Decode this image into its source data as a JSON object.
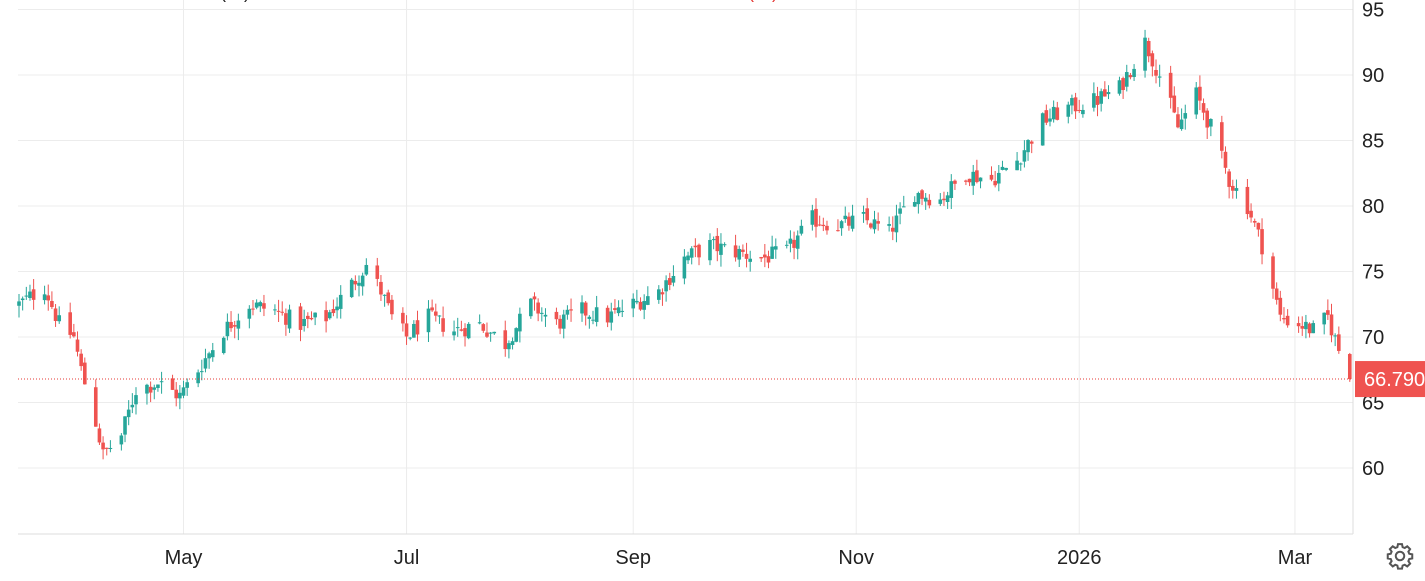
{
  "chart_data": {
    "type": "candlestick",
    "title": "",
    "y_axis": {
      "ticks": [
        "60",
        "65",
        "70",
        "75",
        "80",
        "85",
        "90",
        "95"
      ],
      "range": [
        55,
        95
      ],
      "position": "right"
    },
    "x_axis": {
      "ticks": [
        "May",
        "Jul",
        "Sep",
        "Nov",
        "2026",
        "Mar"
      ]
    },
    "grid": true,
    "last_price": {
      "value": 66.79,
      "label": "66.790"
    },
    "legend_stubs": [
      "(…)",
      "(…)"
    ],
    "anchors": [
      [
        "2025-03-17",
        72.5
      ],
      [
        "2025-03-24",
        73.8
      ],
      [
        "2025-03-28",
        71.0
      ],
      [
        "2025-04-01",
        70.0
      ],
      [
        "2025-04-03",
        67.5
      ],
      [
        "2025-04-07",
        63.5
      ],
      [
        "2025-04-09",
        61.0
      ],
      [
        "2025-04-14",
        62.5
      ],
      [
        "2025-04-18",
        66.0
      ],
      [
        "2025-04-24",
        66.5
      ],
      [
        "2025-04-30",
        65.5
      ],
      [
        "2025-05-05",
        67.5
      ],
      [
        "2025-05-12",
        70.5
      ],
      [
        "2025-05-19",
        72.5
      ],
      [
        "2025-05-26",
        72.0
      ],
      [
        "2025-06-02",
        71.0
      ],
      [
        "2025-06-09",
        71.5
      ],
      [
        "2025-06-16",
        74.0
      ],
      [
        "2025-06-20",
        75.5
      ],
      [
        "2025-06-24",
        73.5
      ],
      [
        "2025-06-27",
        71.5
      ],
      [
        "2025-07-01",
        70.0
      ],
      [
        "2025-07-07",
        71.5
      ],
      [
        "2025-07-14",
        70.5
      ],
      [
        "2025-07-21",
        71.0
      ],
      [
        "2025-07-28",
        69.5
      ],
      [
        "2025-08-04",
        72.5
      ],
      [
        "2025-08-11",
        71.0
      ],
      [
        "2025-08-18",
        72.0
      ],
      [
        "2025-08-25",
        71.5
      ],
      [
        "2025-09-01",
        72.5
      ],
      [
        "2025-09-08",
        73.5
      ],
      [
        "2025-09-15",
        76.0
      ],
      [
        "2025-09-22",
        77.0
      ],
      [
        "2025-09-29",
        76.5
      ],
      [
        "2025-10-06",
        76.0
      ],
      [
        "2025-10-13",
        76.5
      ],
      [
        "2025-10-20",
        79.0
      ],
      [
        "2025-10-27",
        78.5
      ],
      [
        "2025-11-03",
        79.0
      ],
      [
        "2025-11-10",
        78.0
      ],
      [
        "2025-11-17",
        81.0
      ],
      [
        "2025-11-24",
        80.5
      ],
      [
        "2025-12-01",
        82.5
      ],
      [
        "2025-12-08",
        82.0
      ],
      [
        "2025-12-15",
        83.5
      ],
      [
        "2025-12-22",
        86.5
      ],
      [
        "2025-12-29",
        87.5
      ],
      [
        "2026-01-05",
        88.0
      ],
      [
        "2026-01-12",
        89.0
      ],
      [
        "2026-01-19",
        92.5
      ],
      [
        "2026-01-23",
        90.0
      ],
      [
        "2026-01-28",
        86.0
      ],
      [
        "2026-02-02",
        88.5
      ],
      [
        "2026-02-06",
        86.0
      ],
      [
        "2026-02-11",
        82.0
      ],
      [
        "2026-02-16",
        80.0
      ],
      [
        "2026-02-20",
        77.0
      ],
      [
        "2026-02-25",
        71.5
      ],
      [
        "2026-03-02",
        71.0
      ],
      [
        "2026-03-06",
        70.5
      ],
      [
        "2026-03-10",
        71.5
      ],
      [
        "2026-03-13",
        69.0
      ],
      [
        "2026-03-16",
        66.79
      ]
    ],
    "up_color": "#26a69a",
    "down_color": "#ef5350"
  },
  "ui": {
    "settings_icon": "gear-icon",
    "colors": {
      "grid": "#ececec",
      "axis_text": "#222222",
      "price_line": "#e53935",
      "price_tag_bg": "#ef5350"
    }
  }
}
